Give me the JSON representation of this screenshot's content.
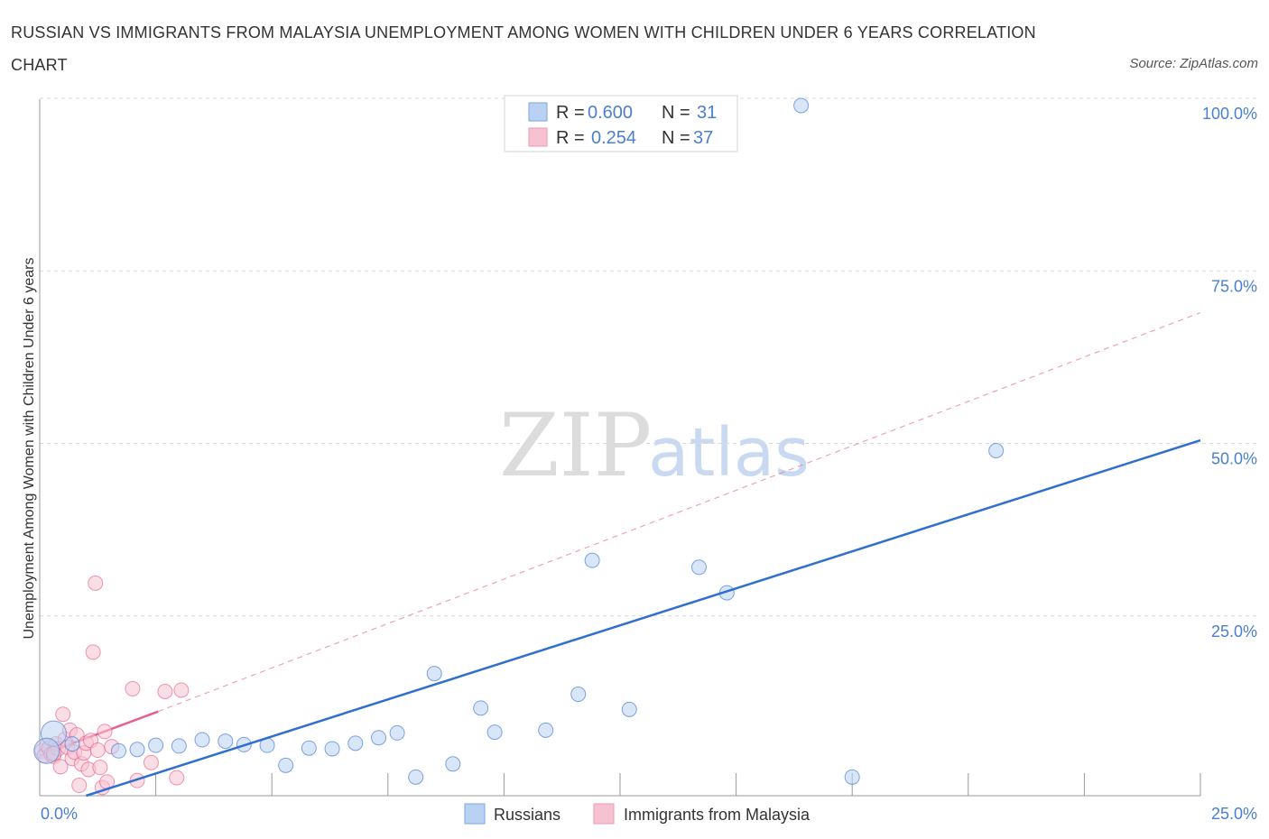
{
  "title": "RUSSIAN VS IMMIGRANTS FROM MALAYSIA UNEMPLOYMENT AMONG WOMEN WITH CHILDREN UNDER 6 YEARS CORRELATION CHART",
  "source": "Source: ZipAtlas.com",
  "watermark": {
    "zip": "ZIP",
    "atlas": "atlas"
  },
  "colors": {
    "blue": "#4a7fd1",
    "blue_fill": "#b9d1f3",
    "blue_line": "#2f6fd0",
    "pink": "#e8608a",
    "pink_fill": "#f6c2d2",
    "grid": "#d9d9d9",
    "axis": "#999999"
  },
  "legend_top": [
    {
      "r_label": "R =",
      "r_value": "0.600",
      "n_label": "N =",
      "n_value": "31"
    },
    {
      "r_label": "R =",
      "r_value": "0.254",
      "n_label": "N =",
      "n_value": "37"
    }
  ],
  "chart_data": {
    "type": "scatter",
    "ylabel": "Unemployment Among Women with Children Under 6 years",
    "xlim": [
      0,
      25
    ],
    "ylim": [
      0,
      100
    ],
    "x_tick_labels": [
      "0.0%",
      "25.0%"
    ],
    "y_ticks": [
      25,
      50,
      75,
      100
    ],
    "y_tick_labels": [
      "25.0%",
      "50.0%",
      "75.0%",
      "100.0%"
    ],
    "series": [
      {
        "name": "Russians",
        "color": "#4a7fd1",
        "points": [
          [
            0.3,
            9.0
          ],
          [
            0.7,
            7.5
          ],
          [
            1.7,
            6.5
          ],
          [
            2.1,
            6.7
          ],
          [
            2.5,
            7.3
          ],
          [
            3.0,
            7.2
          ],
          [
            3.5,
            8.1
          ],
          [
            4.0,
            7.9
          ],
          [
            4.4,
            7.4
          ],
          [
            4.9,
            7.3
          ],
          [
            5.3,
            4.4
          ],
          [
            5.8,
            6.9
          ],
          [
            6.3,
            6.8
          ],
          [
            6.8,
            7.6
          ],
          [
            7.3,
            8.4
          ],
          [
            7.7,
            9.1
          ],
          [
            8.1,
            2.7
          ],
          [
            8.5,
            17.7
          ],
          [
            8.9,
            4.6
          ],
          [
            9.5,
            12.7
          ],
          [
            9.8,
            9.2
          ],
          [
            10.9,
            9.5
          ],
          [
            11.6,
            14.7
          ],
          [
            11.9,
            34.1
          ],
          [
            12.7,
            12.5
          ],
          [
            14.2,
            33.1
          ],
          [
            14.8,
            29.4
          ],
          [
            16.4,
            100.0
          ],
          [
            17.5,
            2.7
          ],
          [
            20.6,
            50.0
          ],
          [
            0.15,
            6.5
          ]
        ],
        "trend": {
          "x": [
            1.0,
            25.0
          ],
          "y": [
            0.0,
            51.5
          ],
          "style": "solid"
        }
      },
      {
        "name": "Immigrants from Malaysia",
        "color": "#e8608a",
        "points": [
          [
            0.05,
            6.5
          ],
          [
            0.1,
            5.8
          ],
          [
            0.15,
            7.2
          ],
          [
            0.2,
            6.9
          ],
          [
            0.25,
            6.0
          ],
          [
            0.3,
            5.7
          ],
          [
            0.35,
            7.5
          ],
          [
            0.4,
            6.8
          ],
          [
            0.45,
            4.2
          ],
          [
            0.5,
            11.8
          ],
          [
            0.55,
            8.2
          ],
          [
            0.6,
            7.0
          ],
          [
            0.65,
            9.5
          ],
          [
            0.7,
            5.4
          ],
          [
            0.75,
            6.3
          ],
          [
            0.8,
            8.8
          ],
          [
            0.85,
            1.5
          ],
          [
            0.9,
            4.6
          ],
          [
            0.95,
            6.2
          ],
          [
            1.0,
            7.6
          ],
          [
            1.05,
            3.8
          ],
          [
            1.1,
            8.0
          ],
          [
            1.15,
            20.8
          ],
          [
            1.2,
            30.8
          ],
          [
            1.25,
            6.6
          ],
          [
            1.3,
            4.1
          ],
          [
            1.35,
            1.2
          ],
          [
            1.4,
            9.3
          ],
          [
            1.45,
            2.0
          ],
          [
            1.55,
            7.1
          ],
          [
            2.0,
            15.5
          ],
          [
            2.1,
            2.2
          ],
          [
            2.4,
            4.8
          ],
          [
            2.7,
            15.1
          ],
          [
            2.95,
            2.6
          ],
          [
            3.05,
            15.3
          ],
          [
            0.3,
            6.1
          ]
        ],
        "trend_solid": {
          "x": [
            0.0,
            2.55
          ],
          "y": [
            5.8,
            12.2
          ]
        },
        "trend_dashed": {
          "x": [
            2.55,
            25.0
          ],
          "y": [
            12.2,
            70.0
          ]
        }
      }
    ]
  }
}
